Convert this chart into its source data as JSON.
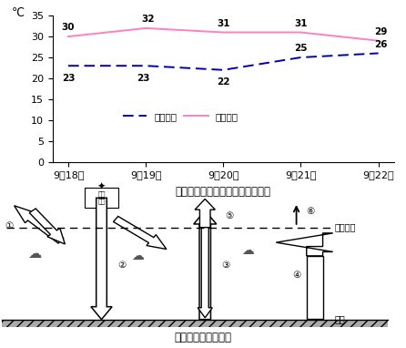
{
  "top_chart": {
    "x_labels": [
      "9月18日",
      "9月19日",
      "9月20日",
      "9月21日",
      "9月22日"
    ],
    "high_temp": [
      30,
      32,
      31,
      31,
      29
    ],
    "low_temp": [
      23,
      23,
      22,
      25,
      26
    ],
    "high_color": "#ff80c0",
    "low_color": "#0000aa",
    "ylabel": "℃",
    "ylim": [
      0,
      35
    ],
    "yticks": [
      0,
      5,
      10,
      15,
      20,
      25,
      30,
      35
    ],
    "title": "合肥市逐日最高、最低气温变化图",
    "legend_low": "最低气温",
    "legend_high": "最高气温"
  },
  "bottom_title": "大气热量平衡示意图",
  "bg_color": "#ffffff"
}
